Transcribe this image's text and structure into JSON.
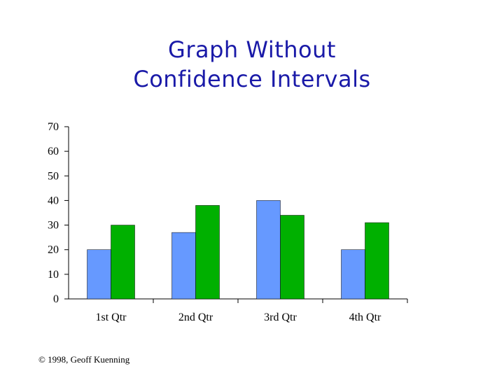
{
  "slide": {
    "title_line1": "Graph Without",
    "title_line2": "Confidence Intervals",
    "footer": "© 1998, Geoff Kuenning"
  },
  "colors": {
    "title": "#1a1aa8",
    "series1": "#6699ff",
    "series2": "#00b000"
  },
  "chart_data": {
    "type": "bar",
    "title": "",
    "xlabel": "",
    "ylabel": "",
    "categories": [
      "1st Qtr",
      "2nd Qtr",
      "3rd Qtr",
      "4th Qtr"
    ],
    "series": [
      {
        "values": [
          20,
          27,
          40,
          20
        ]
      },
      {
        "values": [
          30,
          38,
          34,
          31
        ]
      }
    ],
    "ylim": [
      0,
      70
    ],
    "yticks": [
      0,
      10,
      20,
      30,
      40,
      50,
      60,
      70
    ],
    "grid": false,
    "legend": "none"
  }
}
